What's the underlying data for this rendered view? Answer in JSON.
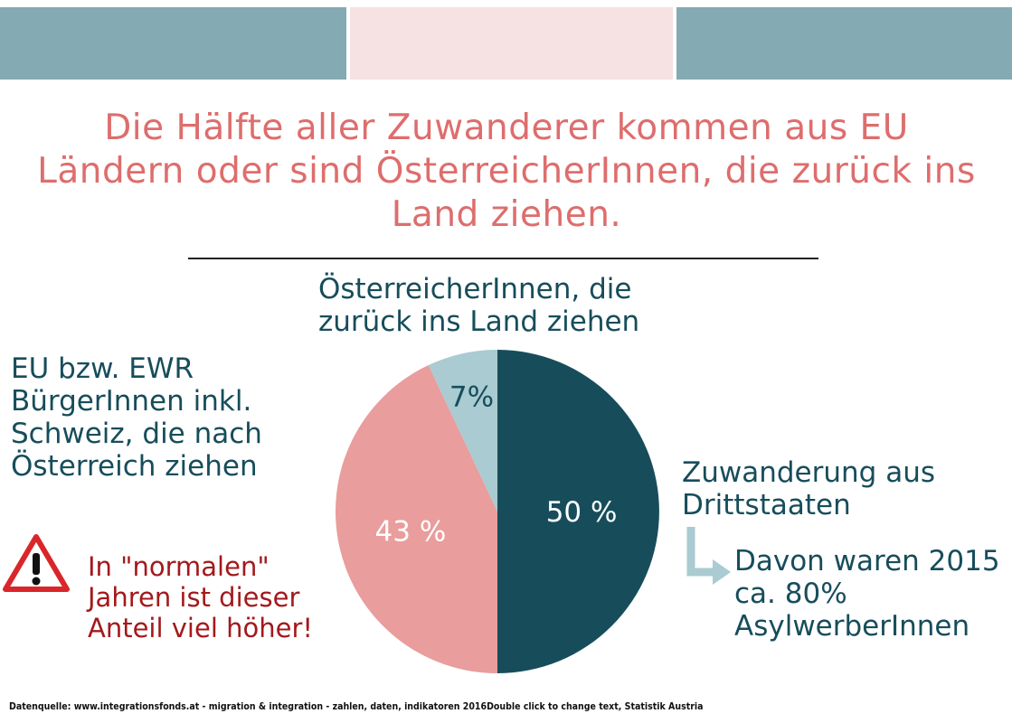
{
  "colors": {
    "band_left": "#84aab3",
    "band_mid": "#f6e2e2",
    "band_right": "#84aab3",
    "title": "#de6d6d",
    "teal_dark": "#174d5b",
    "pink": "#e99d9c",
    "light_blue": "#a9cbd1",
    "note_red": "#a3191c",
    "arrow": "#a9cbd1"
  },
  "title": "Die Hälfte aller Zuwanderer kommen aus EU Ländern oder sind ÖsterreicherInnen, die zurück ins Land ziehen.",
  "labels": {
    "austrians": "ÖsterreicherInnen, die zurück ins Land ziehen",
    "eu": "EU bzw. EWR BürgerInnen inkl. Schweiz, die nach Österreich ziehen",
    "third_countries": "Zuwanderung aus Drittstaaten",
    "asylum": "Davon waren 2015 ca. 80% AsylwerberInnen"
  },
  "note": "In \"normalen\" Jahren ist dieser Anteil viel höher!",
  "icons": {
    "warning": "warning-triangle-icon",
    "arrow": "arrow-down-right-icon"
  },
  "source": "Datenquelle: www.integrationsfonds.at - migration & integration - zahlen, daten, indikatoren 2016Double click to change text, Statistik Austria",
  "chart_data": {
    "type": "pie",
    "title": "",
    "slices": [
      {
        "label": "Zuwanderung aus Drittstaaten",
        "value": 50,
        "display": "50 %",
        "color": "#174d5b",
        "text_color": "#ffffff"
      },
      {
        "label": "EU bzw. EWR BürgerInnen inkl. Schweiz, die nach Österreich ziehen",
        "value": 43,
        "display": "43 %",
        "color": "#e99d9c",
        "text_color": "#ffffff"
      },
      {
        "label": "ÖsterreicherInnen, die zurück ins Land ziehen",
        "value": 7,
        "display": "7%",
        "color": "#a9cbd1",
        "text_color": "#174d5b"
      }
    ]
  }
}
